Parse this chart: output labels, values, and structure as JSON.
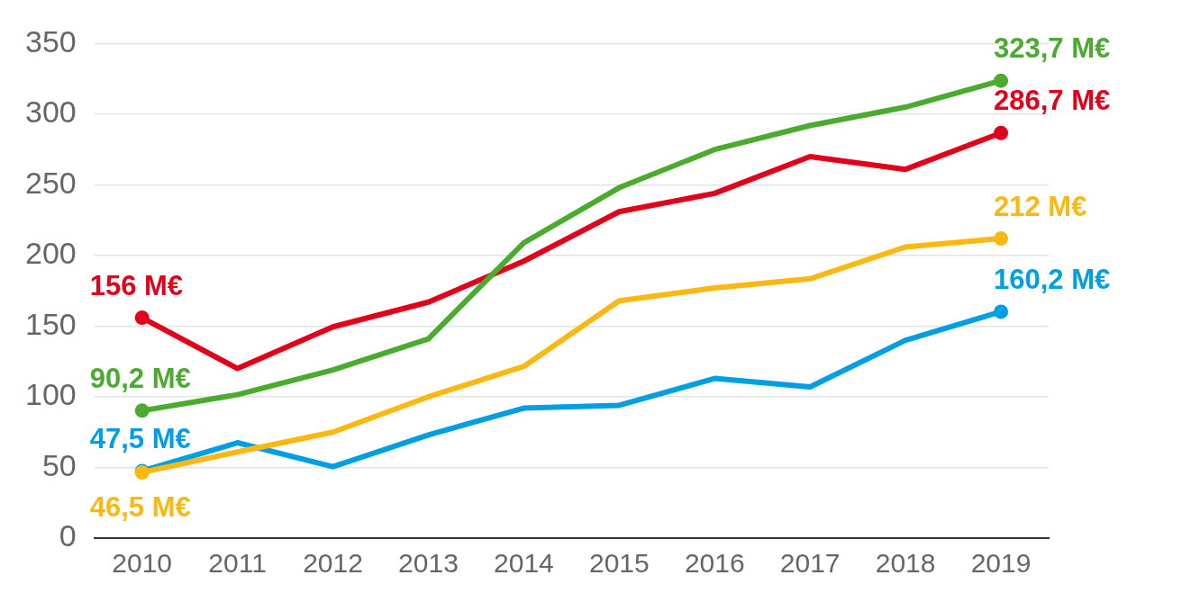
{
  "chart_data": {
    "type": "line",
    "categories": [
      "2010",
      "2011",
      "2012",
      "2013",
      "2014",
      "2015",
      "2016",
      "2017",
      "2018",
      "2019"
    ],
    "series": [
      {
        "color": "#4aab2f",
        "values": [
          90.2,
          101.5,
          119,
          141,
          209,
          248,
          275,
          292,
          305,
          323.7
        ],
        "value_labels": [
          "90,2 M€",
          null,
          null,
          null,
          null,
          null,
          null,
          null,
          null,
          "323,7 M€"
        ]
      },
      {
        "color": "#e3001b",
        "values": [
          156,
          120,
          149.5,
          167,
          196,
          231,
          244,
          270,
          261,
          286.7
        ],
        "value_labels": [
          "156 M€",
          null,
          null,
          null,
          null,
          null,
          null,
          null,
          null,
          "286,7 M€"
        ]
      },
      {
        "color": "#fbb812",
        "values": [
          46.5,
          61,
          75,
          100,
          121.5,
          168,
          177,
          183.5,
          206,
          212
        ],
        "value_labels": [
          "46,5 M€",
          null,
          null,
          null,
          null,
          null,
          null,
          null,
          null,
          "212 M€"
        ]
      },
      {
        "color": "#009fe3",
        "values": [
          47.5,
          67.5,
          50.5,
          73,
          92,
          94,
          113,
          107,
          140,
          160.2
        ],
        "value_labels": [
          "47,5 M€",
          null,
          null,
          null,
          null,
          null,
          null,
          null,
          null,
          "160,2 M€"
        ]
      }
    ],
    "ylim": [
      0,
      350
    ],
    "yticks": [
      0,
      50,
      100,
      150,
      200,
      250,
      300,
      350
    ],
    "grid": "y",
    "legend": false,
    "line_style": "solid"
  }
}
